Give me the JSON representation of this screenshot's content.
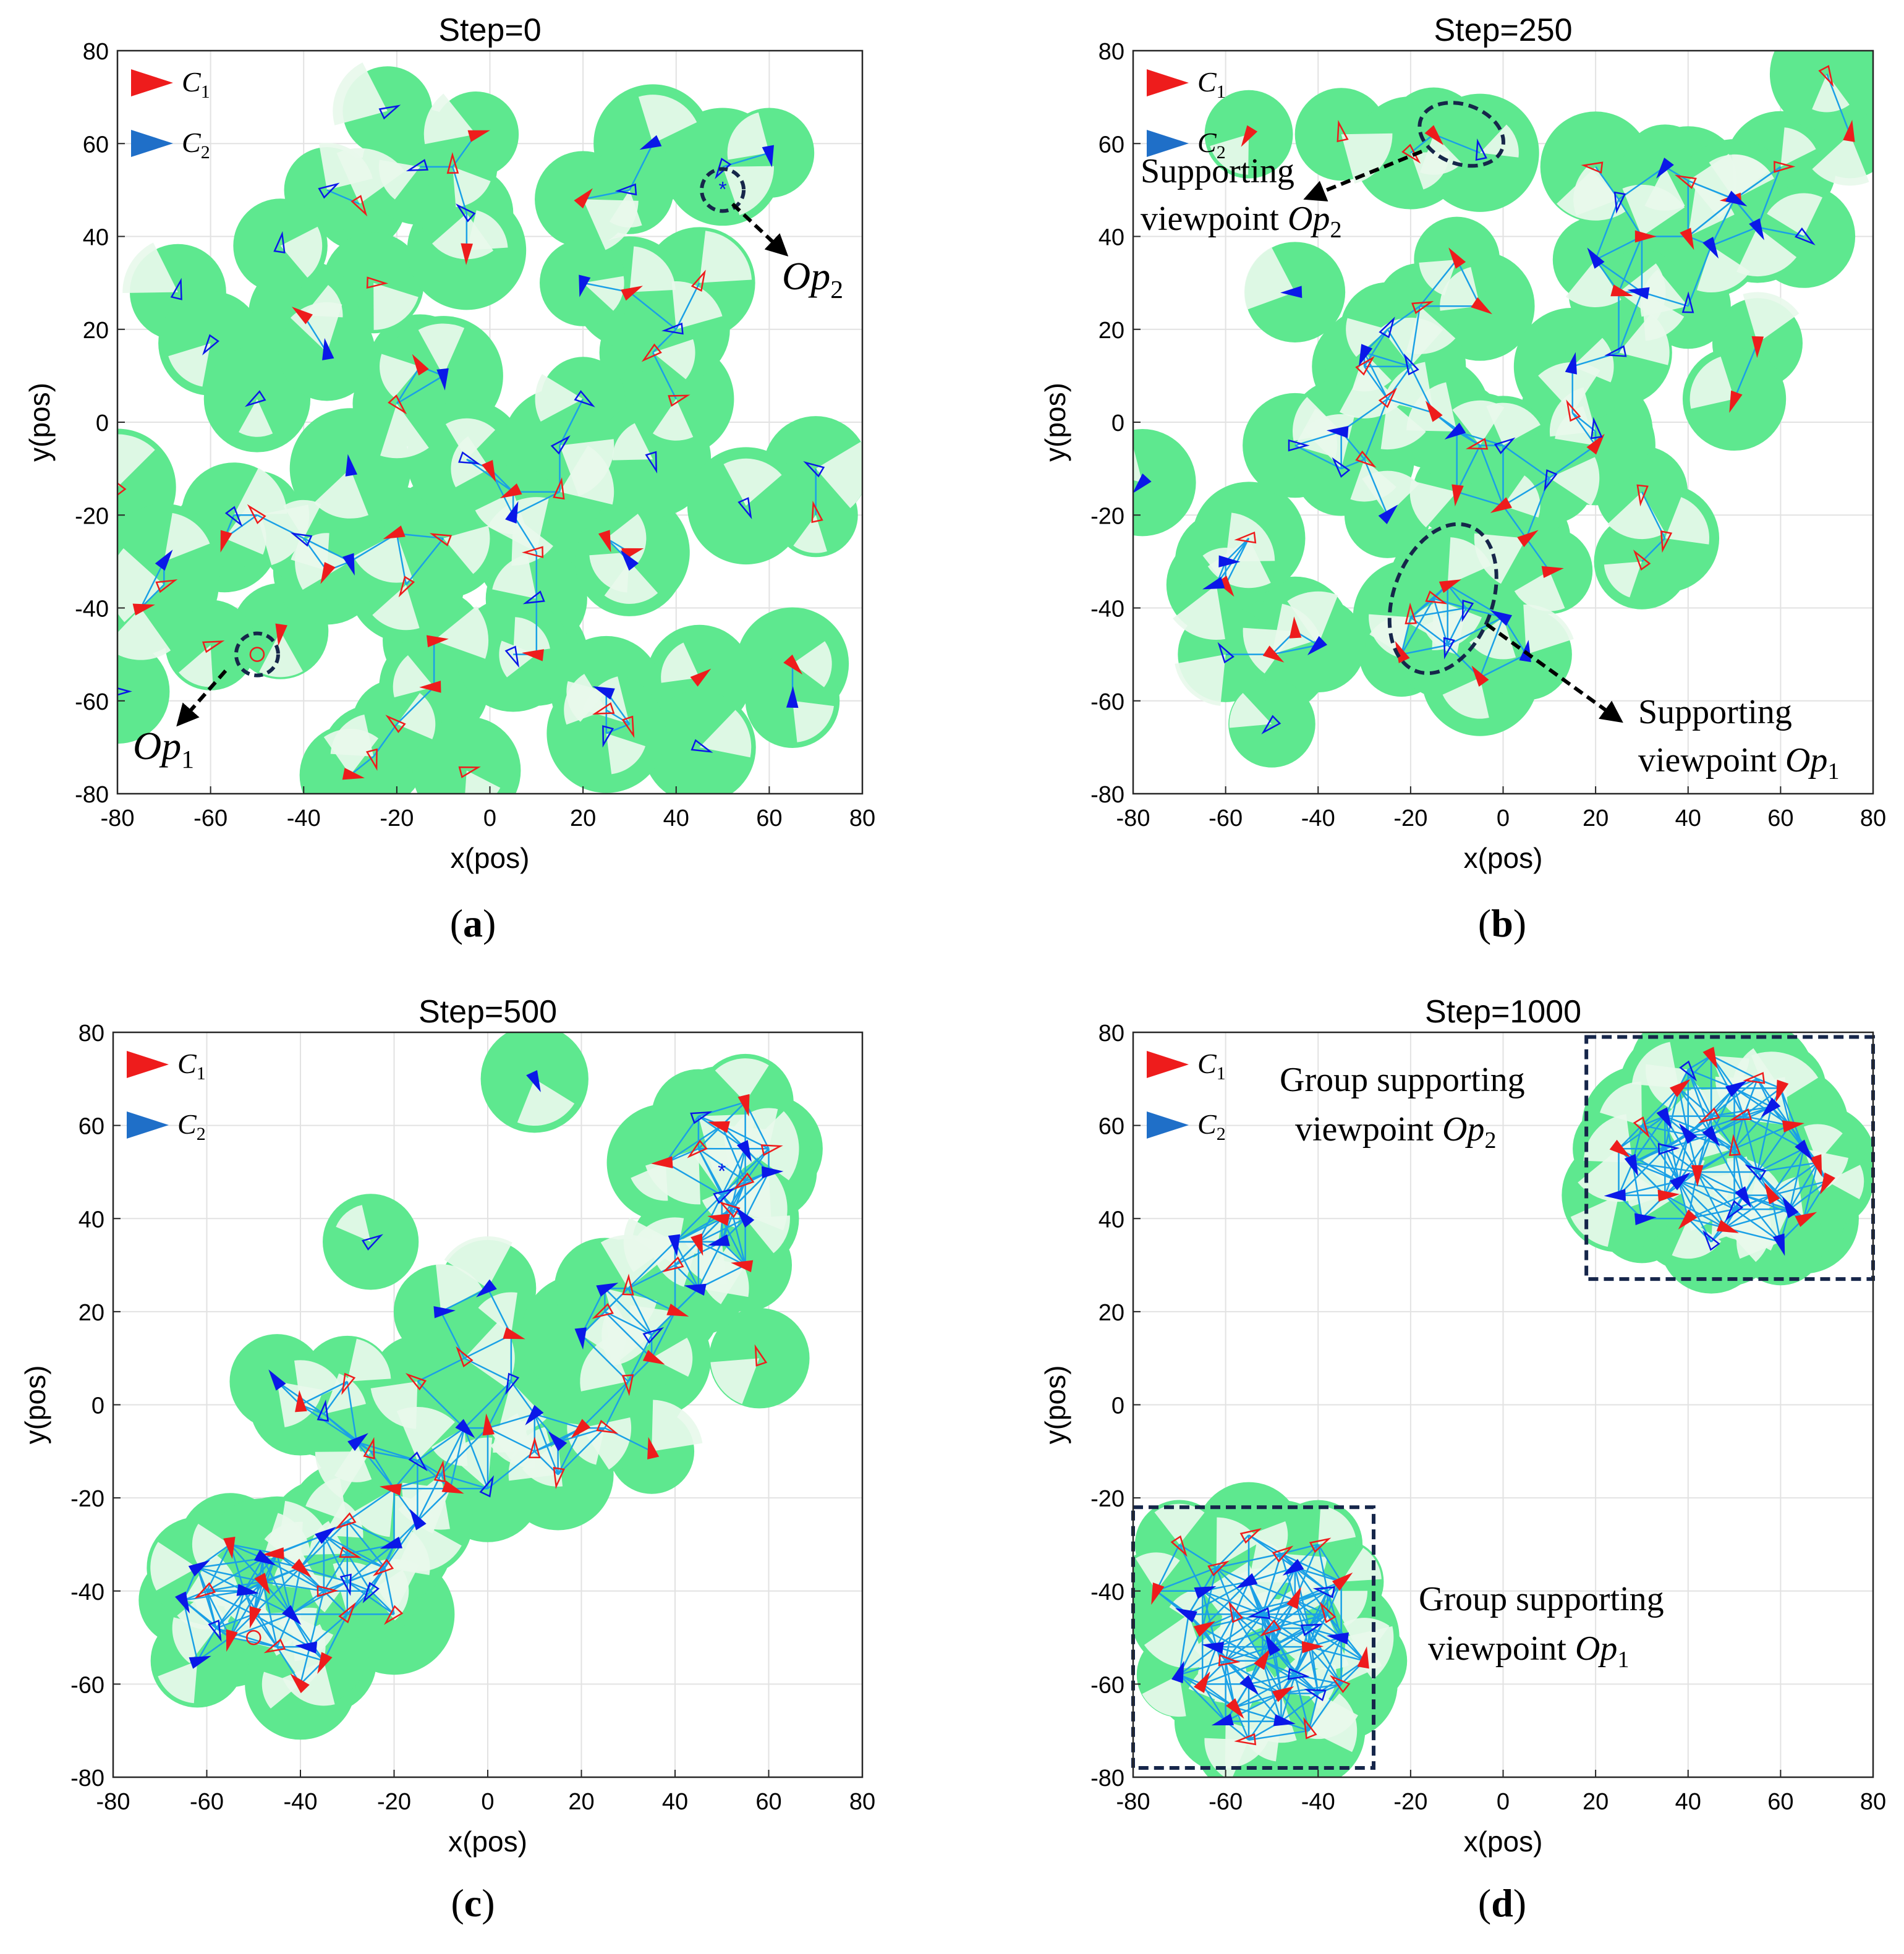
{
  "colors": {
    "c1": "#ee1c1c",
    "c2": "#0a18e8",
    "c2_legend": "#1f6fc8",
    "coverage": "#5ee88f",
    "sector": "#e8f8ec",
    "link": "#1aa0e6",
    "box": "#16264a",
    "grid": "#e2e2e2"
  },
  "legend": {
    "c1": "C",
    "c1_sub": "1",
    "c2": "C",
    "c2_sub": "2"
  },
  "axes": {
    "xlabel": "x(pos)",
    "ylabel": "y(pos)",
    "xlim": [
      -80,
      80
    ],
    "ylim": [
      -80,
      80
    ],
    "ticks": [
      "-80",
      "-60",
      "-40",
      "-20",
      "0",
      "20",
      "40",
      "60",
      "80"
    ]
  },
  "chart_data": [
    {
      "type": "scatter",
      "title": "Step=0",
      "panel_label": "a",
      "agents_c1": [
        [
          -28,
          47
        ],
        [
          -25,
          30
        ],
        [
          -40,
          23
        ],
        [
          -8,
          55
        ],
        [
          -3,
          62
        ],
        [
          20,
          48
        ],
        [
          -5,
          37
        ],
        [
          -15,
          12
        ],
        [
          -20,
          4
        ],
        [
          -45,
          -45
        ],
        [
          -70,
          -35
        ],
        [
          -35,
          -32
        ],
        [
          -20,
          -24
        ],
        [
          5,
          -15
        ],
        [
          10,
          -28
        ],
        [
          25,
          -25
        ],
        [
          -12,
          -57
        ],
        [
          10,
          -50
        ],
        [
          25,
          -62
        ],
        [
          30,
          -65
        ],
        [
          -12,
          -47
        ],
        [
          -18,
          -35
        ],
        [
          -50,
          -20
        ],
        [
          -60,
          -48
        ],
        [
          -25,
          -72
        ],
        [
          70,
          -20
        ],
        [
          65,
          -52
        ],
        [
          45,
          -55
        ],
        [
          30,
          -28
        ],
        [
          15,
          -15
        ],
        [
          -10,
          -25
        ],
        [
          0,
          -10
        ],
        [
          -80,
          -14
        ],
        [
          -75,
          -40
        ],
        [
          -20,
          -65
        ],
        [
          35,
          15
        ],
        [
          45,
          30
        ],
        [
          40,
          5
        ],
        [
          -5,
          -75
        ],
        [
          -30,
          -76
        ],
        [
          30,
          28
        ],
        [
          -57,
          -25
        ]
      ],
      "agents_c2": [
        [
          -15,
          55
        ],
        [
          -35,
          50
        ],
        [
          35,
          60
        ],
        [
          -22,
          67
        ],
        [
          -5,
          45
        ],
        [
          20,
          30
        ],
        [
          60,
          58
        ],
        [
          30,
          50
        ],
        [
          40,
          20
        ],
        [
          -67,
          28
        ],
        [
          -60,
          17
        ],
        [
          -50,
          5
        ],
        [
          -35,
          15
        ],
        [
          -10,
          10
        ],
        [
          -5,
          -8
        ],
        [
          15,
          -5
        ],
        [
          20,
          5
        ],
        [
          35,
          -8
        ],
        [
          -55,
          -20
        ],
        [
          -40,
          -25
        ],
        [
          -30,
          -30
        ],
        [
          10,
          -38
        ],
        [
          30,
          -30
        ],
        [
          5,
          -50
        ],
        [
          25,
          -58
        ],
        [
          45,
          -70
        ],
        [
          65,
          -60
        ],
        [
          -70,
          -30
        ],
        [
          -80,
          -58
        ],
        [
          70,
          -10
        ],
        [
          55,
          -18
        ],
        [
          25,
          -67
        ],
        [
          50,
          55
        ],
        [
          -45,
          38
        ],
        [
          -30,
          -10
        ],
        [
          5,
          -20
        ]
      ],
      "op": {
        "label": "Op",
        "sub": "2",
        "x": 50,
        "y": 50
      },
      "op2": {
        "label": "Op",
        "sub": "1",
        "x": -50,
        "y": -50
      }
    },
    {
      "type": "scatter",
      "title": "Step=250",
      "panel_label": "b",
      "annotations": [
        {
          "text1": "Supporting",
          "text2": "viewpoint ",
          "label": "Op",
          "sub": "2",
          "x": -12,
          "y": 62
        },
        {
          "text1": "Supporting",
          "text2": "viewpoint ",
          "label": "Op",
          "sub": "1",
          "x": -12,
          "y": -40
        }
      ],
      "agents_c1": [
        [
          -15,
          62
        ],
        [
          -35,
          62
        ],
        [
          -55,
          62
        ],
        [
          20,
          55
        ],
        [
          40,
          52
        ],
        [
          50,
          48
        ],
        [
          60,
          55
        ],
        [
          30,
          40
        ],
        [
          25,
          28
        ],
        [
          40,
          40
        ],
        [
          -5,
          25
        ],
        [
          -18,
          25
        ],
        [
          -10,
          35
        ],
        [
          -30,
          12
        ],
        [
          -25,
          5
        ],
        [
          -15,
          2
        ],
        [
          15,
          2
        ],
        [
          20,
          -5
        ],
        [
          30,
          -15
        ],
        [
          55,
          17
        ],
        [
          50,
          5
        ],
        [
          -30,
          -8
        ],
        [
          -10,
          -15
        ],
        [
          5,
          -25
        ],
        [
          -12,
          -35
        ],
        [
          -20,
          -42
        ],
        [
          -5,
          -55
        ],
        [
          -50,
          -50
        ],
        [
          -15,
          -38
        ],
        [
          -22,
          -50
        ],
        [
          0,
          -18
        ],
        [
          10,
          -32
        ],
        [
          30,
          -30
        ],
        [
          -60,
          -35
        ],
        [
          -45,
          -45
        ],
        [
          75,
          62
        ],
        [
          70,
          75
        ],
        [
          -5,
          -5
        ],
        [
          -55,
          -25
        ],
        [
          35,
          -25
        ],
        [
          -20,
          58
        ]
      ],
      "agents_c2": [
        [
          -5,
          58
        ],
        [
          25,
          48
        ],
        [
          35,
          55
        ],
        [
          45,
          38
        ],
        [
          20,
          35
        ],
        [
          55,
          42
        ],
        [
          30,
          28
        ],
        [
          40,
          25
        ],
        [
          -45,
          28
        ],
        [
          -25,
          20
        ],
        [
          -20,
          12
        ],
        [
          -10,
          -2
        ],
        [
          0,
          -5
        ],
        [
          10,
          -12
        ],
        [
          20,
          -2
        ],
        [
          -35,
          -2
        ],
        [
          -45,
          -5
        ],
        [
          -78,
          -13
        ],
        [
          -62,
          -35
        ],
        [
          -60,
          -50
        ],
        [
          -40,
          -48
        ],
        [
          -50,
          -65
        ],
        [
          -8,
          -40
        ],
        [
          0,
          -42
        ],
        [
          -12,
          -48
        ],
        [
          5,
          -50
        ],
        [
          -30,
          15
        ],
        [
          -35,
          -10
        ],
        [
          15,
          12
        ],
        [
          50,
          48
        ],
        [
          65,
          40
        ],
        [
          -25,
          -20
        ],
        [
          -60,
          -30
        ],
        [
          25,
          15
        ]
      ]
    },
    {
      "type": "scatter",
      "title": "Step=500",
      "panel_label": "c",
      "agents_c1": [
        [
          -40,
          -35
        ],
        [
          -35,
          -40
        ],
        [
          -30,
          -32
        ],
        [
          -50,
          -45
        ],
        [
          -45,
          -52
        ],
        [
          -55,
          -50
        ],
        [
          -35,
          -55
        ],
        [
          -30,
          -45
        ],
        [
          -45,
          -32
        ],
        [
          -60,
          -40
        ],
        [
          -40,
          -60
        ],
        [
          -55,
          -30
        ],
        [
          -48,
          -38
        ],
        [
          -30,
          -25
        ],
        [
          -20,
          -18
        ],
        [
          -10,
          -15
        ],
        [
          -25,
          -10
        ],
        [
          -40,
          0
        ],
        [
          -30,
          5
        ],
        [
          -15,
          5
        ],
        [
          -5,
          10
        ],
        [
          5,
          15
        ],
        [
          0,
          -5
        ],
        [
          10,
          -10
        ],
        [
          20,
          -5
        ],
        [
          15,
          -15
        ],
        [
          25,
          20
        ],
        [
          30,
          25
        ],
        [
          40,
          20
        ],
        [
          35,
          10
        ],
        [
          30,
          5
        ],
        [
          40,
          30
        ],
        [
          45,
          35
        ],
        [
          50,
          40
        ],
        [
          55,
          48
        ],
        [
          60,
          55
        ],
        [
          50,
          60
        ],
        [
          55,
          65
        ],
        [
          45,
          55
        ],
        [
          38,
          52
        ],
        [
          52,
          42
        ],
        [
          55,
          30
        ],
        [
          58,
          10
        ],
        [
          35,
          -10
        ],
        [
          25,
          -5
        ],
        [
          -20,
          -45
        ],
        [
          -22,
          -35
        ],
        [
          -8,
          -18
        ]
      ],
      "agents_c2": [
        [
          -48,
          -33
        ],
        [
          -42,
          -45
        ],
        [
          -38,
          -52
        ],
        [
          -52,
          -40
        ],
        [
          -58,
          -48
        ],
        [
          -62,
          -55
        ],
        [
          -65,
          -42
        ],
        [
          -35,
          -28
        ],
        [
          -30,
          -38
        ],
        [
          -25,
          -40
        ],
        [
          -45,
          5
        ],
        [
          -35,
          -2
        ],
        [
          -28,
          -8
        ],
        [
          -15,
          -12
        ],
        [
          -5,
          -5
        ],
        [
          0,
          -18
        ],
        [
          10,
          -2
        ],
        [
          15,
          -8
        ],
        [
          5,
          5
        ],
        [
          -10,
          20
        ],
        [
          0,
          25
        ],
        [
          20,
          15
        ],
        [
          25,
          25
        ],
        [
          35,
          15
        ],
        [
          45,
          25
        ],
        [
          40,
          35
        ],
        [
          50,
          45
        ],
        [
          55,
          55
        ],
        [
          45,
          62
        ],
        [
          60,
          50
        ],
        [
          50,
          35
        ],
        [
          -25,
          35
        ],
        [
          10,
          70
        ],
        [
          -20,
          -30
        ],
        [
          -62,
          -35
        ],
        [
          55,
          40
        ],
        [
          -15,
          -25
        ]
      ],
      "op": {
        "x": 50,
        "y": 50
      },
      "op2": {
        "x": -50,
        "y": -50
      }
    },
    {
      "type": "scatter",
      "title": "Step=1000",
      "panel_label": "d",
      "annotations": [
        {
          "text1": "Group supporting",
          "text2": "viewpoint ",
          "label": "Op",
          "sub": "2",
          "x": 48,
          "y": 52
        },
        {
          "text1": "Group supporting",
          "text2": "viewpoint ",
          "label": "Op",
          "sub": "1",
          "x": -52,
          "y": -50
        }
      ],
      "box1": [
        18,
        80,
        27,
        79
      ],
      "box2": [
        -80,
        -28,
        -78,
        -22
      ],
      "agents_c1": [
        [
          45,
          75
        ],
        [
          55,
          70
        ],
        [
          38,
          68
        ],
        [
          62,
          60
        ],
        [
          30,
          60
        ],
        [
          68,
          52
        ],
        [
          50,
          55
        ],
        [
          42,
          50
        ],
        [
          58,
          45
        ],
        [
          35,
          45
        ],
        [
          65,
          40
        ],
        [
          48,
          38
        ],
        [
          40,
          40
        ],
        [
          25,
          55
        ],
        [
          52,
          62
        ],
        [
          60,
          68
        ],
        [
          70,
          48
        ],
        [
          45,
          62
        ],
        [
          -70,
          -30
        ],
        [
          -62,
          -35
        ],
        [
          -55,
          -28
        ],
        [
          -48,
          -32
        ],
        [
          -40,
          -30
        ],
        [
          -35,
          -38
        ],
        [
          -45,
          -42
        ],
        [
          -58,
          -45
        ],
        [
          -65,
          -48
        ],
        [
          -52,
          -55
        ],
        [
          -42,
          -52
        ],
        [
          -35,
          -60
        ],
        [
          -48,
          -62
        ],
        [
          -58,
          -65
        ],
        [
          -65,
          -60
        ],
        [
          -55,
          -72
        ],
        [
          -42,
          -70
        ],
        [
          -38,
          -45
        ],
        [
          -75,
          -40
        ],
        [
          -30,
          -55
        ],
        [
          -50,
          -48
        ],
        [
          -60,
          -55
        ]
      ],
      "agents_c2": [
        [
          40,
          72
        ],
        [
          50,
          68
        ],
        [
          35,
          62
        ],
        [
          58,
          64
        ],
        [
          28,
          52
        ],
        [
          45,
          58
        ],
        [
          55,
          50
        ],
        [
          38,
          48
        ],
        [
          62,
          42
        ],
        [
          30,
          40
        ],
        [
          50,
          42
        ],
        [
          45,
          35
        ],
        [
          40,
          58
        ],
        [
          52,
          45
        ],
        [
          35,
          55
        ],
        [
          65,
          55
        ],
        [
          25,
          45
        ],
        [
          60,
          35
        ],
        [
          -68,
          -45
        ],
        [
          -55,
          -38
        ],
        [
          -45,
          -35
        ],
        [
          -38,
          -40
        ],
        [
          -62,
          -52
        ],
        [
          -50,
          -52
        ],
        [
          -45,
          -58
        ],
        [
          -55,
          -60
        ],
        [
          -40,
          -62
        ],
        [
          -60,
          -68
        ],
        [
          -48,
          -68
        ],
        [
          -70,
          -58
        ],
        [
          -35,
          -50
        ],
        [
          -52,
          -45
        ],
        [
          -42,
          -48
        ],
        [
          -65,
          -40
        ]
      ]
    }
  ]
}
